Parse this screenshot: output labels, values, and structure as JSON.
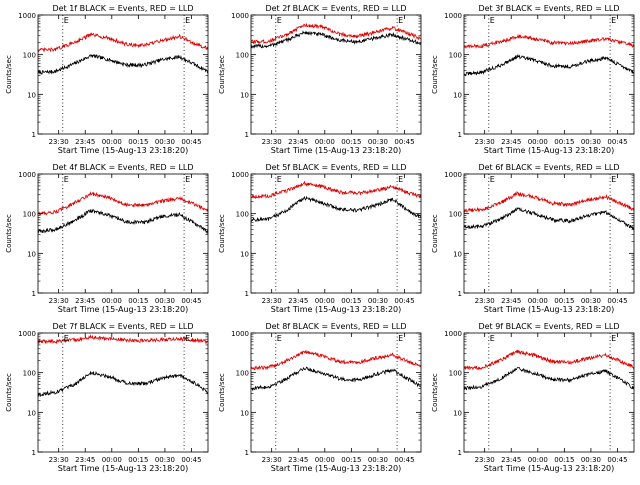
{
  "figure": {
    "start_time_label": "Start Time (15-Aug-13 23:18:20)",
    "ylabel": "Counts/sec",
    "colors": {
      "events": "#000000",
      "lld": "#e00000",
      "axes": "#000000"
    }
  },
  "chart_data": [
    {
      "type": "line",
      "title": "Det 1f BLACK = Events, RED = LLD",
      "ylabel": "Counts/sec",
      "xlabel": "Start Time (15-Aug-13 23:18:20)",
      "x_ticks": [
        "23:30",
        "23:45",
        "00:00",
        "00:15",
        "00:30",
        "00:45"
      ],
      "x_tick_minutes": [
        11.67,
        26.67,
        41.67,
        56.67,
        71.67,
        86.67
      ],
      "xlim_minutes": [
        0,
        96
      ],
      "y_scale": "log",
      "ylim": [
        1,
        1000
      ],
      "y_ticks": [
        "1",
        "10",
        "100",
        "1000"
      ],
      "markers_minutes": [
        14,
        82.5
      ],
      "marker_labels": [
        "E",
        "E"
      ],
      "series": [
        {
          "color": "#000000",
          "x": [
            0,
            10,
            20,
            30,
            40,
            50,
            60,
            70,
            80,
            90,
            96
          ],
          "values": [
            35,
            38,
            58,
            95,
            75,
            55,
            55,
            75,
            88,
            52,
            38
          ]
        },
        {
          "color": "#e00000",
          "x": [
            0,
            10,
            20,
            30,
            40,
            50,
            60,
            70,
            80,
            90,
            96
          ],
          "values": [
            130,
            135,
            200,
            320,
            260,
            180,
            170,
            230,
            290,
            175,
            145
          ]
        }
      ]
    },
    {
      "type": "line",
      "title": "Det 2f BLACK = Events, RED = LLD",
      "ylabel": "Counts/sec",
      "xlabel": "Start Time (15-Aug-13 23:18:20)",
      "x_ticks": [
        "23:30",
        "23:45",
        "00:00",
        "00:15",
        "00:30",
        "00:45"
      ],
      "x_tick_minutes": [
        11.67,
        26.67,
        41.67,
        56.67,
        71.67,
        86.67
      ],
      "xlim_minutes": [
        0,
        96
      ],
      "y_scale": "log",
      "ylim": [
        1,
        1000
      ],
      "y_ticks": [
        "1",
        "10",
        "100",
        "1000"
      ],
      "markers_minutes": [
        14,
        82.5
      ],
      "marker_labels": [
        "E",
        "E"
      ],
      "series": [
        {
          "color": "#000000",
          "x": [
            0,
            10,
            20,
            30,
            40,
            50,
            60,
            70,
            80,
            90,
            96
          ],
          "values": [
            160,
            165,
            230,
            360,
            320,
            230,
            210,
            260,
            320,
            230,
            190
          ]
        },
        {
          "color": "#e00000",
          "x": [
            0,
            10,
            20,
            30,
            40,
            50,
            60,
            70,
            80,
            90,
            96
          ],
          "values": [
            210,
            215,
            320,
            560,
            500,
            330,
            290,
            360,
            470,
            330,
            250
          ]
        }
      ]
    },
    {
      "type": "line",
      "title": "Det 3f BLACK = Events, RED = LLD",
      "ylabel": "Counts/sec",
      "xlabel": "Start Time (15-Aug-13 23:18:20)",
      "x_ticks": [
        "23:30",
        "23:45",
        "00:00",
        "00:15",
        "00:30",
        "00:45"
      ],
      "x_tick_minutes": [
        11.67,
        26.67,
        41.67,
        56.67,
        71.67,
        86.67
      ],
      "xlim_minutes": [
        0,
        96
      ],
      "y_scale": "log",
      "ylim": [
        1,
        1000
      ],
      "y_ticks": [
        "1",
        "10",
        "100",
        "1000"
      ],
      "markers_minutes": [
        14,
        82.5
      ],
      "marker_labels": [
        "E",
        "E"
      ],
      "series": [
        {
          "color": "#000000",
          "x": [
            0,
            10,
            20,
            30,
            40,
            50,
            60,
            70,
            80,
            90,
            96
          ],
          "values": [
            32,
            36,
            52,
            90,
            72,
            52,
            50,
            68,
            82,
            50,
            35
          ]
        },
        {
          "color": "#e00000",
          "x": [
            0,
            10,
            20,
            30,
            40,
            50,
            60,
            70,
            80,
            90,
            96
          ],
          "values": [
            160,
            165,
            210,
            290,
            250,
            200,
            190,
            220,
            250,
            200,
            165
          ]
        }
      ]
    },
    {
      "type": "line",
      "title": "Det 4f BLACK = Events, RED = LLD",
      "ylabel": "Counts/sec",
      "xlabel": "Start Time (15-Aug-13 23:18:20)",
      "x_ticks": [
        "23:30",
        "23:45",
        "00:00",
        "00:15",
        "00:30",
        "00:45"
      ],
      "x_tick_minutes": [
        11.67,
        26.67,
        41.67,
        56.67,
        71.67,
        86.67
      ],
      "xlim_minutes": [
        0,
        96
      ],
      "y_scale": "log",
      "ylim": [
        1,
        1000
      ],
      "y_ticks": [
        "1",
        "10",
        "100",
        "1000"
      ],
      "markers_minutes": [
        14,
        82.5
      ],
      "marker_labels": [
        "E",
        "E"
      ],
      "series": [
        {
          "color": "#000000",
          "x": [
            0,
            10,
            20,
            30,
            40,
            50,
            60,
            70,
            80,
            90,
            96
          ],
          "values": [
            35,
            40,
            65,
            120,
            90,
            62,
            60,
            85,
            95,
            52,
            35
          ]
        },
        {
          "color": "#e00000",
          "x": [
            0,
            10,
            20,
            30,
            40,
            50,
            60,
            70,
            80,
            90,
            96
          ],
          "values": [
            100,
            110,
            180,
            320,
            250,
            170,
            160,
            210,
            240,
            160,
            120
          ]
        }
      ]
    },
    {
      "type": "line",
      "title": "Det 5f BLACK = Events, RED = LLD",
      "ylabel": "Counts/sec",
      "xlabel": "Start Time (15-Aug-13 23:18:20)",
      "x_ticks": [
        "23:30",
        "23:45",
        "00:00",
        "00:15",
        "00:30",
        "00:45"
      ],
      "x_tick_minutes": [
        11.67,
        26.67,
        41.67,
        56.67,
        71.67,
        86.67
      ],
      "xlim_minutes": [
        0,
        96
      ],
      "y_scale": "log",
      "ylim": [
        1,
        1000
      ],
      "y_ticks": [
        "1",
        "10",
        "100",
        "1000"
      ],
      "markers_minutes": [
        14,
        82.5
      ],
      "marker_labels": [
        "E",
        "E"
      ],
      "series": [
        {
          "color": "#000000",
          "x": [
            0,
            10,
            20,
            30,
            40,
            50,
            60,
            70,
            80,
            90,
            96
          ],
          "values": [
            70,
            72,
            120,
            250,
            190,
            130,
            120,
            160,
            230,
            110,
            80
          ]
        },
        {
          "color": "#e00000",
          "x": [
            0,
            10,
            20,
            30,
            40,
            50,
            60,
            70,
            80,
            90,
            96
          ],
          "values": [
            270,
            275,
            380,
            580,
            480,
            350,
            330,
            380,
            480,
            320,
            270
          ]
        }
      ]
    },
    {
      "type": "line",
      "title": "Det 6f BLACK = Events, RED = LLD",
      "ylabel": "Counts/sec",
      "xlabel": "Start Time (15-Aug-13 23:18:20)",
      "x_ticks": [
        "23:30",
        "23:45",
        "00:00",
        "00:15",
        "00:30",
        "00:45"
      ],
      "x_tick_minutes": [
        11.67,
        26.67,
        41.67,
        56.67,
        71.67,
        86.67
      ],
      "xlim_minutes": [
        0,
        96
      ],
      "y_scale": "log",
      "ylim": [
        1,
        1000
      ],
      "y_ticks": [
        "1",
        "10",
        "100",
        "1000"
      ],
      "markers_minutes": [
        14,
        82.5
      ],
      "marker_labels": [
        "E",
        "E"
      ],
      "series": [
        {
          "color": "#000000",
          "x": [
            0,
            10,
            20,
            30,
            40,
            50,
            60,
            70,
            80,
            90,
            96
          ],
          "values": [
            45,
            48,
            70,
            130,
            100,
            70,
            65,
            90,
            110,
            60,
            42
          ]
        },
        {
          "color": "#e00000",
          "x": [
            0,
            10,
            20,
            30,
            40,
            50,
            60,
            70,
            80,
            90,
            96
          ],
          "values": [
            120,
            125,
            180,
            320,
            260,
            180,
            170,
            220,
            270,
            170,
            125
          ]
        }
      ]
    },
    {
      "type": "line",
      "title": "Det 7f BLACK = Events, RED = LLD",
      "ylabel": "Counts/sec",
      "xlabel": "Start Time (15-Aug-13 23:18:20)",
      "x_ticks": [
        "23:30",
        "23:45",
        "00:00",
        "00:15",
        "00:30",
        "00:45"
      ],
      "x_tick_minutes": [
        11.67,
        26.67,
        41.67,
        56.67,
        71.67,
        86.67
      ],
      "xlim_minutes": [
        0,
        96
      ],
      "y_scale": "log",
      "ylim": [
        1,
        1000
      ],
      "y_ticks": [
        "1",
        "10",
        "100",
        "1000"
      ],
      "markers_minutes": [
        14,
        82.5
      ],
      "marker_labels": [
        "E",
        "E"
      ],
      "series": [
        {
          "color": "#000000",
          "x": [
            0,
            10,
            20,
            30,
            40,
            50,
            60,
            70,
            80,
            90,
            96
          ],
          "values": [
            28,
            32,
            48,
            100,
            80,
            55,
            52,
            72,
            85,
            50,
            30
          ]
        },
        {
          "color": "#e00000",
          "x": [
            0,
            10,
            20,
            30,
            40,
            50,
            60,
            70,
            80,
            90,
            96
          ],
          "values": [
            600,
            620,
            660,
            780,
            720,
            660,
            640,
            680,
            720,
            650,
            600
          ]
        }
      ]
    },
    {
      "type": "line",
      "title": "Det 8f BLACK = Events, RED = LLD",
      "ylabel": "Counts/sec",
      "xlabel": "Start Time (15-Aug-13 23:18:20)",
      "x_ticks": [
        "23:30",
        "23:45",
        "00:00",
        "00:15",
        "00:30",
        "00:45"
      ],
      "x_tick_minutes": [
        11.67,
        26.67,
        41.67,
        56.67,
        71.67,
        86.67
      ],
      "xlim_minutes": [
        0,
        96
      ],
      "y_scale": "log",
      "ylim": [
        1,
        1000
      ],
      "y_ticks": [
        "1",
        "10",
        "100",
        "1000"
      ],
      "markers_minutes": [
        14,
        82.5
      ],
      "marker_labels": [
        "E",
        "E"
      ],
      "series": [
        {
          "color": "#000000",
          "x": [
            0,
            10,
            20,
            30,
            40,
            50,
            60,
            70,
            80,
            90,
            96
          ],
          "values": [
            40,
            44,
            70,
            130,
            100,
            70,
            65,
            90,
            115,
            65,
            45
          ]
        },
        {
          "color": "#e00000",
          "x": [
            0,
            10,
            20,
            30,
            40,
            50,
            60,
            70,
            80,
            90,
            96
          ],
          "values": [
            130,
            135,
            200,
            340,
            270,
            190,
            180,
            230,
            280,
            180,
            140
          ]
        }
      ]
    },
    {
      "type": "line",
      "title": "Det 9f BLACK = Events, RED = LLD",
      "ylabel": "Counts/sec",
      "xlabel": "Start Time (15-Aug-13 23:18:20)",
      "x_ticks": [
        "23:30",
        "23:45",
        "00:00",
        "00:15",
        "00:30",
        "00:45"
      ],
      "x_tick_minutes": [
        11.67,
        26.67,
        41.67,
        56.67,
        71.67,
        86.67
      ],
      "xlim_minutes": [
        0,
        96
      ],
      "y_scale": "log",
      "ylim": [
        1,
        1000
      ],
      "y_ticks": [
        "1",
        "10",
        "100",
        "1000"
      ],
      "markers_minutes": [
        14,
        82.5
      ],
      "marker_labels": [
        "E",
        "E"
      ],
      "series": [
        {
          "color": "#000000",
          "x": [
            0,
            10,
            20,
            30,
            40,
            50,
            60,
            70,
            80,
            90,
            96
          ],
          "values": [
            40,
            44,
            68,
            125,
            95,
            68,
            65,
            88,
            110,
            60,
            40
          ]
        },
        {
          "color": "#e00000",
          "x": [
            0,
            10,
            20,
            30,
            40,
            50,
            60,
            70,
            80,
            90,
            96
          ],
          "values": [
            130,
            135,
            200,
            340,
            270,
            190,
            180,
            230,
            280,
            180,
            140
          ]
        }
      ]
    }
  ]
}
